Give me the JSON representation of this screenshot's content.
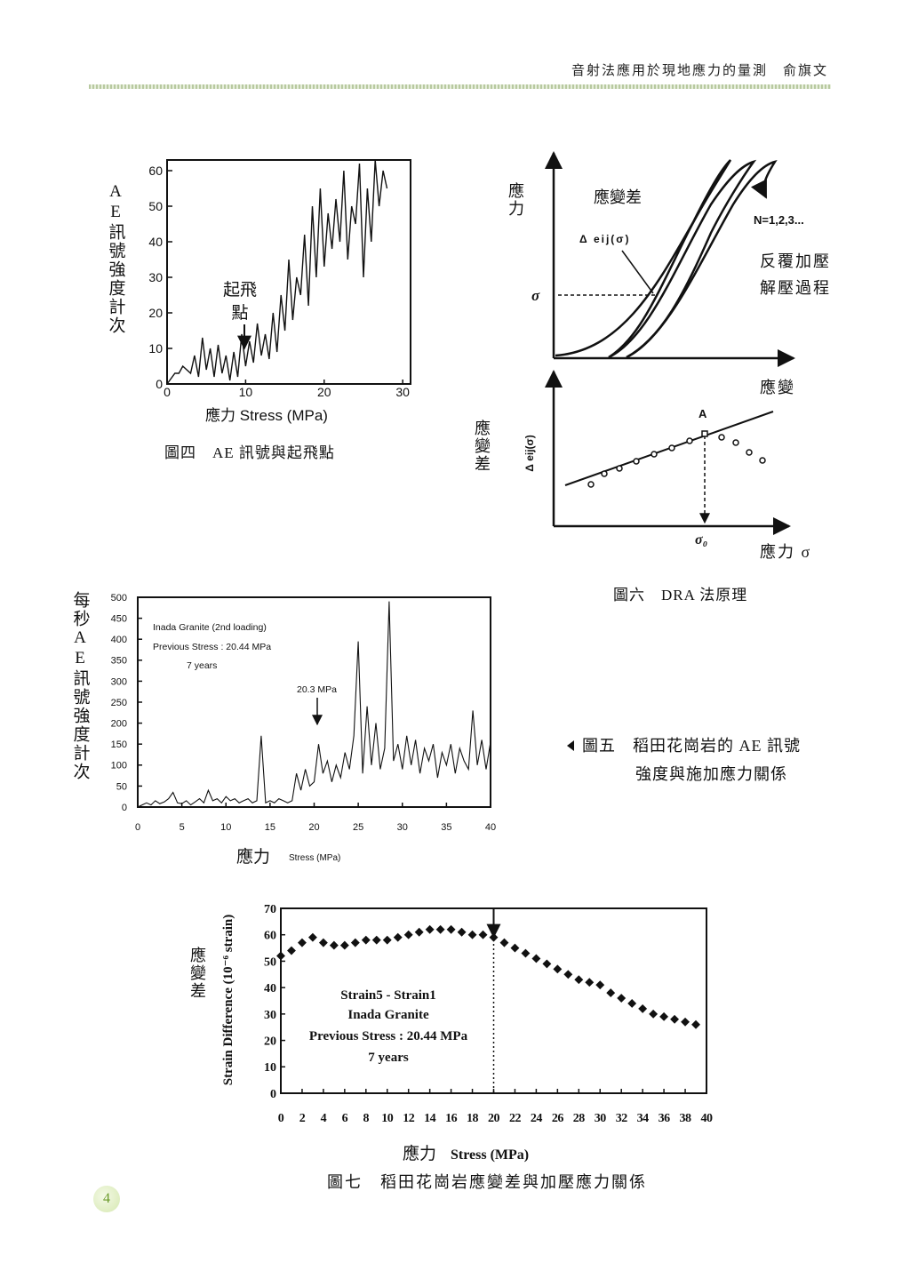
{
  "header": "音射法應用於現地應力的量測　俞旗文",
  "page_number": "4",
  "chart_data": [
    {
      "type": "line",
      "y_label": "AE訊號強度計次",
      "x_label": "應力 Stress (MPa)",
      "annotation_lines": [
        "起飛",
        "點"
      ],
      "caption": "圖四　AE 訊號與起飛點",
      "x": [
        0,
        1,
        1.5,
        2,
        3,
        3.5,
        4,
        4.5,
        5,
        5.5,
        6,
        6.5,
        7,
        7.5,
        8,
        8.5,
        9,
        9.5,
        10,
        10.5,
        11,
        11.5,
        12,
        12.5,
        13,
        13.5,
        14,
        14.5,
        15,
        15.5,
        16,
        16.5,
        17,
        17.5,
        18,
        18.5,
        19,
        19.5,
        20,
        20.5,
        21,
        21.5,
        22,
        22.5,
        23,
        23.5,
        24,
        24.5,
        25,
        25.5,
        26,
        26.5,
        27,
        27.5,
        28
      ],
      "values": [
        0,
        3,
        3,
        5,
        3,
        8,
        2,
        13,
        4,
        10,
        2,
        11,
        3,
        8,
        1,
        9,
        2,
        14,
        5,
        12,
        6,
        17,
        8,
        14,
        7,
        20,
        9,
        25,
        15,
        35,
        18,
        30,
        25,
        42,
        22,
        50,
        30,
        55,
        33,
        48,
        38,
        52,
        40,
        60,
        35,
        50,
        45,
        62,
        30,
        55,
        40,
        63,
        50,
        60,
        55
      ],
      "color": "#111111",
      "xlim": [
        0,
        31
      ],
      "ylim": [
        0,
        63
      ],
      "xticks": [
        0,
        10,
        20,
        30
      ],
      "yticks": [
        0,
        10,
        20,
        30,
        40,
        50,
        60
      ]
    },
    {
      "type": "line",
      "y_label": "每秒AE訊號強度計次",
      "x_label": "應力",
      "x_label_en": "Stress (MPa)",
      "annotations": [
        "Inada Granite (2nd loading)",
        "Previous Stress : 20.44 MPa",
        "7 years"
      ],
      "arrow_label": "20.3 MPa",
      "caption_lines": [
        "圖五　稻田花崗岩的 AE 訊號",
        "強度與施加應力關係"
      ],
      "x": [
        0,
        0.5,
        1,
        1.5,
        2,
        2.5,
        3,
        3.5,
        4,
        4.5,
        5,
        5.5,
        6,
        6.5,
        7,
        7.5,
        8,
        8.5,
        9,
        9.5,
        10,
        10.5,
        11,
        11.5,
        12,
        12.5,
        13,
        13.5,
        14,
        14.5,
        15,
        15.5,
        16,
        16.5,
        17,
        17.5,
        18,
        18.5,
        19,
        19.5,
        20,
        20.5,
        21,
        21.5,
        22,
        22.5,
        23,
        23.5,
        24,
        24.5,
        25,
        25.5,
        26,
        26.5,
        27,
        27.5,
        28,
        28.5,
        29,
        29.5,
        30,
        30.5,
        31,
        31.5,
        32,
        32.5,
        33,
        33.5,
        34,
        34.5,
        35,
        35.5,
        36,
        36.5,
        37,
        37.5,
        38,
        38.5,
        39,
        39.5,
        40
      ],
      "values": [
        0,
        5,
        10,
        5,
        15,
        8,
        12,
        20,
        35,
        10,
        8,
        15,
        5,
        12,
        20,
        10,
        40,
        15,
        20,
        10,
        25,
        15,
        20,
        10,
        15,
        20,
        10,
        15,
        170,
        10,
        15,
        10,
        20,
        15,
        10,
        15,
        80,
        40,
        90,
        50,
        60,
        150,
        80,
        110,
        60,
        100,
        70,
        130,
        90,
        170,
        395,
        80,
        240,
        100,
        200,
        90,
        140,
        490,
        110,
        150,
        90,
        170,
        100,
        160,
        80,
        140,
        110,
        150,
        70,
        130,
        100,
        150,
        80,
        140,
        110,
        90,
        230,
        100,
        160,
        90,
        155
      ],
      "color": "#111111",
      "xlim": [
        0,
        40
      ],
      "ylim": [
        0,
        500
      ],
      "xticks": [
        0,
        5,
        10,
        15,
        20,
        25,
        30,
        35,
        40
      ],
      "yticks": [
        0,
        50,
        100,
        150,
        200,
        250,
        300,
        350,
        400,
        450,
        500
      ]
    },
    {
      "type": "scatter",
      "y_label": "應變差",
      "y_label_en": "Strain Difference (10⁻⁶ strain)",
      "x_label": "應力",
      "x_label_en": "Stress (MPa)",
      "annotations": [
        "Strain5 - Strain1",
        "Inada Granite",
        "Previous Stress : 20.44 MPa",
        "7 years"
      ],
      "caption": "圖七　稻田花崗岩應變差與加壓應力關係",
      "x": [
        0,
        1,
        2,
        3,
        4,
        5,
        6,
        7,
        8,
        9,
        10,
        11,
        12,
        13,
        14,
        15,
        16,
        17,
        18,
        19,
        20,
        21,
        22,
        23,
        24,
        25,
        26,
        27,
        28,
        29,
        30,
        31,
        32,
        33,
        34,
        35,
        36,
        37,
        38,
        39
      ],
      "values": [
        52,
        54,
        57,
        59,
        57,
        56,
        56,
        57,
        58,
        58,
        58,
        59,
        60,
        61,
        62,
        62,
        62,
        61,
        60,
        60,
        59,
        57,
        55,
        53,
        51,
        49,
        47,
        45,
        43,
        42,
        41,
        38,
        36,
        34,
        32,
        30,
        29,
        28,
        27,
        26
      ],
      "color": "#111111",
      "xlim": [
        0,
        40
      ],
      "ylim": [
        0,
        70
      ],
      "xticks": [
        0,
        2,
        4,
        6,
        8,
        10,
        12,
        14,
        16,
        18,
        20,
        22,
        24,
        26,
        28,
        30,
        32,
        34,
        36,
        38,
        40
      ],
      "yticks": [
        0,
        10,
        20,
        30,
        40,
        50,
        60,
        70
      ]
    }
  ],
  "diagram": {
    "y_label": "應力",
    "curve_label": "應變差",
    "delta_label": "Δ eij(σ)",
    "cycles": "N=1,2,3...",
    "process_lines": [
      "反覆加壓",
      "解壓過程"
    ],
    "sigma": "σ",
    "x_label": "應變",
    "lower_y_label": "應變差",
    "lower_delta_label": "Δ eij(σ)",
    "point_label": "A",
    "sigma0": "σ₀",
    "lower_x_label": "應力 σ",
    "caption": "圖六　DRA 法原理"
  }
}
